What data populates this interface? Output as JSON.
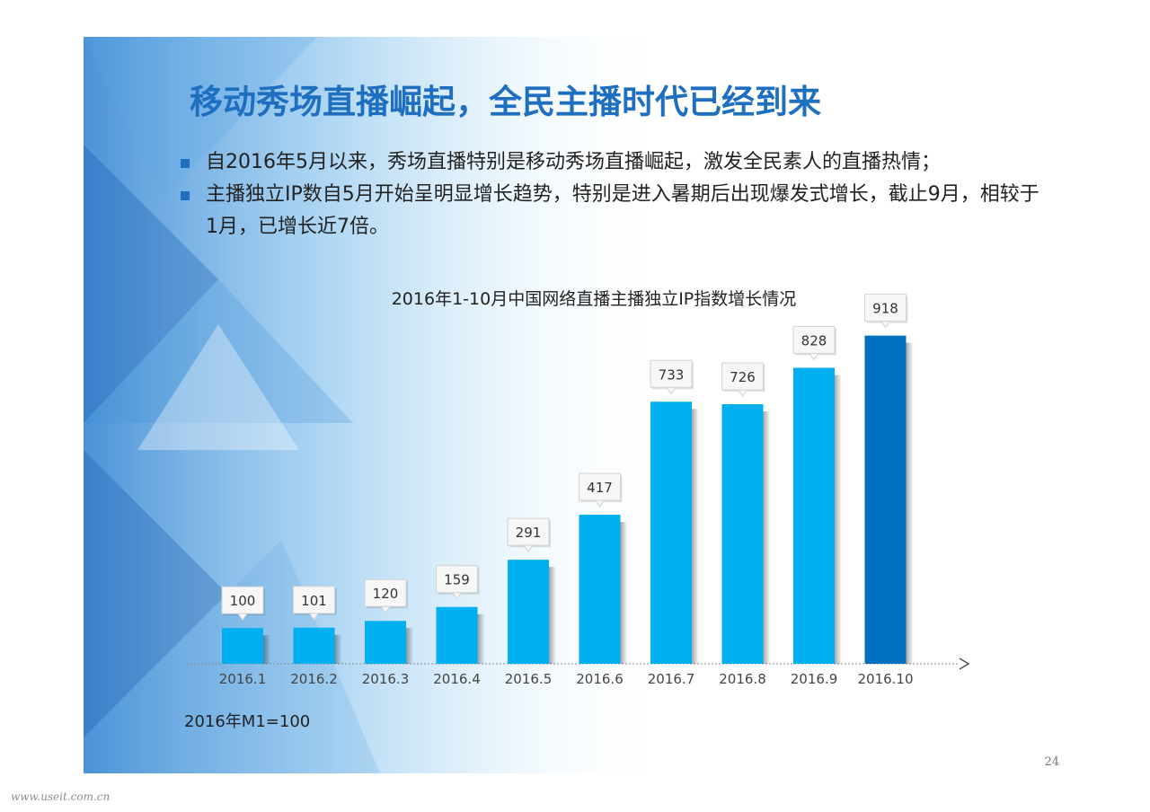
{
  "slide": {
    "title": "移动秀场直播崛起，全民主播时代已经到来",
    "bullets": [
      "自2016年5月以来，秀场直播特别是移动秀场直播崛起，激发全民素人的直播热情；",
      "主播独立IP数自5月开始呈明显增长趋势，特别是进入暑期后出现爆发式增长，截止9月，相较于1月，已增长近7倍。"
    ],
    "footnote": "2016年M1=100",
    "page_number": "24"
  },
  "watermark": "www.useit.com.cn",
  "colors": {
    "bar": "#00b0f0",
    "bar_highlight": "#0070c0",
    "title": "#1f6fc0",
    "bullet_marker": "#1f6fc0"
  },
  "chart_data": {
    "type": "bar",
    "title": "2016年1-10月中国网络直播主播独立IP指数增长情况",
    "categories": [
      "2016.1",
      "2016.2",
      "2016.3",
      "2016.4",
      "2016.5",
      "2016.6",
      "2016.7",
      "2016.8",
      "2016.9",
      "2016.10"
    ],
    "values": [
      100,
      101,
      120,
      159,
      291,
      417,
      733,
      726,
      828,
      918
    ],
    "value_labels": [
      "100",
      "101",
      "120",
      "159",
      "291",
      "417",
      "733",
      "726",
      "828",
      "918"
    ],
    "highlight_index": 9,
    "xlabel": "",
    "ylabel": "",
    "ylim": [
      0,
      1000
    ],
    "grid": false,
    "legend": "none"
  }
}
